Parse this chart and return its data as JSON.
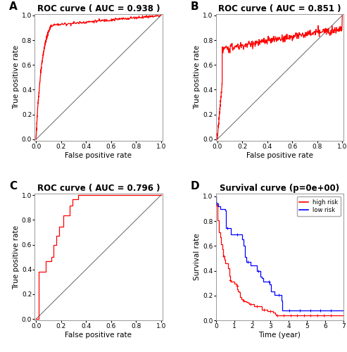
{
  "panel_A": {
    "title": "ROC curve ( AUC = 0.938 )",
    "auc": 0.938,
    "curve_color": "#FF0000",
    "diag_color": "#666666"
  },
  "panel_B": {
    "title": "ROC curve ( AUC = 0.851 )",
    "auc": 0.851,
    "curve_color": "#FF0000",
    "diag_color": "#666666"
  },
  "panel_C": {
    "title": "ROC curve ( AUC = 0.796 )",
    "auc": 0.796,
    "curve_color": "#FF0000",
    "diag_color": "#666666"
  },
  "panel_D": {
    "title": "Survival curve (p=0e+00)",
    "high_risk_color": "#FF0000",
    "low_risk_color": "#0000FF",
    "xlabel": "Time (year)",
    "ylabel": "Survival rate"
  },
  "xlabel_roc": "False positive rate",
  "ylabel_roc": "True positive rate",
  "background_color": "#FFFFFF",
  "panel_labels": [
    "A",
    "B",
    "C",
    "D"
  ],
  "label_fontsize": 11,
  "title_fontsize": 8.5,
  "axis_fontsize": 7.5,
  "tick_fontsize": 6.5
}
